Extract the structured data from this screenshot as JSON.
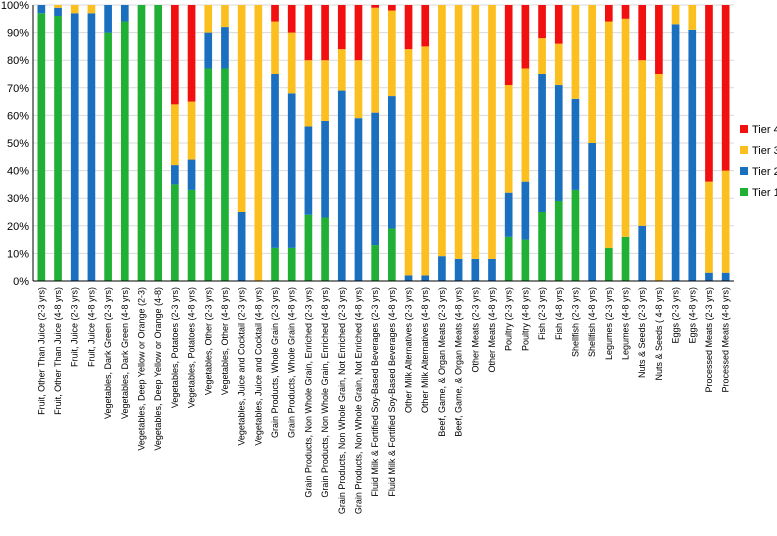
{
  "chart_data": {
    "type": "bar",
    "stacked": true,
    "percent": true,
    "ylim": [
      0,
      100
    ],
    "yticks": [
      "0%",
      "10%",
      "20%",
      "30%",
      "40%",
      "50%",
      "60%",
      "70%",
      "80%",
      "90%",
      "100%"
    ],
    "categories": [
      "Fruit, Other Than Juice (2-3 yrs)",
      "Fruit, Other Than Juice (4-8 yrs)",
      "Fruit, Juice (2-3 yrs)",
      "Fruit, Juice (4-8 yrs)",
      "Vegetables, Dark Green (2-3 yrs)",
      "Vegetables, Dark Green (4-8 yrs)",
      "Vegetables, Deep Yellow or Orange (2-3)",
      "Vegetables, Deep Yellow or Orange (4-8)",
      "Vegetables, Potatoes (2-3 yrs)",
      "Vegetables, Potatoes (4-8 yrs)",
      "Vegetables, Other (2-3 yrs)",
      "Vegetables, Other (4-8 yrs)",
      "Vegetables, Juice and Cocktail (2-3 yrs)",
      "Vegetables, Juice and Cocktail (4-8 yrs)",
      "Grain Products, Whole Grain (2-3 yrs)",
      "Grain Products, Whole Grain (4-8 yrs)",
      "Grain Products, Non Whole Grain, Enriched (2-3 yrs)",
      "Grain Products, Non Whole Grain, Enriched (4-8 yrs)",
      "Grain Products, Non Whole Grain, Not Enriched (2-3 yrs)",
      "Grain Products, Non Whole Grain, Not Enriched (4-8 yrs)",
      "Fluid Milk & Fortified Soy-Based Beverages (2-3 yrs)",
      "Fluid Milk & Fortified Soy-Based Beverages (4-8 yrs)",
      "Other Milk Alternatives (2-3 yrs)",
      "Other Milk Alternatives (4-8 yrs)",
      "Beef, Game, & Organ Meats (2-3 yrs)",
      "Beef, Game, & Organ Meats (4-8 yrs)",
      "Other Meats (2-3 yrs)",
      "Other Meats (4-8 yrs)",
      "Poultry (2-3 yrs)",
      "Poultry (4-8 yrs)",
      "Fish (2-3 yrs)",
      "Fish (4-8 yrs)",
      "Shellfish (2-3 yrs)",
      "Shellfish (4-8 yrs)",
      "Legumes (2-3 yrs)",
      "Legumes (4-8 yrs)",
      "Nuts & Seeds (2-3 yrs)",
      "Nuts & Seeds ( 4-8 yrs)",
      "Eggs (2-3 yrs)",
      "Eggs (4-8 yrs)",
      "Processed Meats (2-3 yrs)",
      "Processed Meats (4-8 yrs)"
    ],
    "series": [
      {
        "name": "Tier 1",
        "color": "#1fb035",
        "values": [
          97,
          96,
          0,
          0,
          90,
          94,
          100,
          100,
          35,
          33,
          77,
          77,
          0,
          0,
          12,
          12,
          24,
          23,
          0,
          0,
          13,
          19,
          0,
          0,
          0,
          0,
          0,
          0,
          16,
          15,
          25,
          29,
          33,
          0,
          12,
          16,
          0,
          0,
          0,
          0,
          0,
          0
        ]
      },
      {
        "name": "Tier 2",
        "color": "#1a6fbe",
        "values": [
          3,
          3,
          97,
          97,
          10,
          6,
          0,
          0,
          7,
          11,
          13,
          15,
          25,
          0,
          63,
          56,
          32,
          35,
          69,
          59,
          48,
          48,
          2,
          2,
          9,
          8,
          8,
          8,
          16,
          21,
          50,
          42,
          33,
          50,
          0,
          0,
          20,
          0,
          93,
          91,
          3,
          3
        ]
      },
      {
        "name": "Tier 3",
        "color": "#fbbf1f",
        "values": [
          0,
          1,
          3,
          3,
          0,
          0,
          0,
          0,
          22,
          21,
          10,
          8,
          75,
          100,
          19,
          22,
          24,
          22,
          15,
          21,
          38,
          31,
          82,
          83,
          91,
          92,
          92,
          92,
          39,
          41,
          13,
          15,
          34,
          50,
          82,
          79,
          60,
          75,
          7,
          9,
          33,
          37
        ]
      },
      {
        "name": "Tier 4",
        "color": "#f20f0f",
        "values": [
          0,
          0,
          0,
          0,
          0,
          0,
          0,
          0,
          36,
          35,
          0,
          0,
          0,
          0,
          6,
          10,
          20,
          20,
          16,
          20,
          1,
          2,
          16,
          15,
          0,
          0,
          0,
          0,
          29,
          23,
          12,
          14,
          0,
          0,
          6,
          5,
          20,
          25,
          0,
          0,
          64,
          60
        ]
      }
    ],
    "legend_order": [
      "Tier 4",
      "Tier 3",
      "Tier 2",
      "Tier 1"
    ],
    "legend_position": "right",
    "title": "",
    "xlabel": "",
    "ylabel": ""
  }
}
